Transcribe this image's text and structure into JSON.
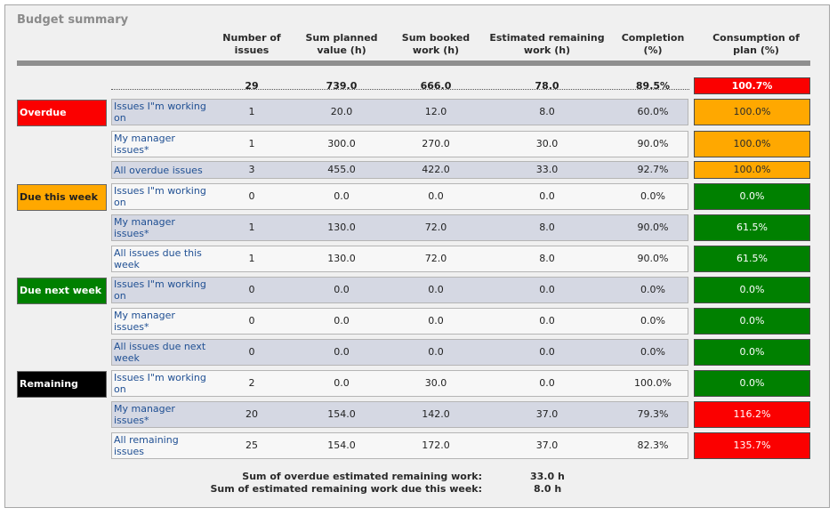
{
  "title": "Budget summary",
  "columns": [
    {
      "l1": "Number of",
      "l2": "issues"
    },
    {
      "l1": "Sum planned",
      "l2": "value (h)"
    },
    {
      "l1": "Sum booked",
      "l2": "work (h)"
    },
    {
      "l1": "Estimated remaining",
      "l2": "work (h)"
    },
    {
      "l1": "Completion",
      "l2": "(%)"
    },
    {
      "l1": "Consumption of",
      "l2": "plan (%)"
    }
  ],
  "totals": {
    "issues": "29",
    "planned": "739.0",
    "booked": "666.0",
    "remaining": "78.0",
    "completion": "89.5%",
    "consumption": "100.7%"
  },
  "groups": [
    {
      "label": "Overdue",
      "color": "#fb0000",
      "text_color": "#ffffff"
    },
    {
      "label": "Due this week",
      "color": "#ffa800",
      "text_color": "#1f1f1f"
    },
    {
      "label": "Due next week",
      "color": "#008000",
      "text_color": "#ffffff"
    },
    {
      "label": "Remaining",
      "color": "#000000",
      "text_color": "#ffffff"
    }
  ],
  "rows": [
    {
      "label": "Issues I\"m working on",
      "issues": "1",
      "planned": "20.0",
      "booked": "12.0",
      "remaining": "8.0",
      "completion": "60.0%",
      "consumption": "100.0%",
      "status": "orange"
    },
    {
      "label": "My manager issues*",
      "issues": "1",
      "planned": "300.0",
      "booked": "270.0",
      "remaining": "30.0",
      "completion": "90.0%",
      "consumption": "100.0%",
      "status": "orange"
    },
    {
      "label": "All overdue issues",
      "issues": "3",
      "planned": "455.0",
      "booked": "422.0",
      "remaining": "33.0",
      "completion": "92.7%",
      "consumption": "100.0%",
      "status": "orange"
    },
    {
      "label": "Issues I\"m working on",
      "issues": "0",
      "planned": "0.0",
      "booked": "0.0",
      "remaining": "0.0",
      "completion": "0.0%",
      "consumption": "0.0%",
      "status": "green"
    },
    {
      "label": "My manager issues*",
      "issues": "1",
      "planned": "130.0",
      "booked": "72.0",
      "remaining": "8.0",
      "completion": "90.0%",
      "consumption": "61.5%",
      "status": "green"
    },
    {
      "label": "All issues due this week",
      "issues": "1",
      "planned": "130.0",
      "booked": "72.0",
      "remaining": "8.0",
      "completion": "90.0%",
      "consumption": "61.5%",
      "status": "green"
    },
    {
      "label": "Issues I\"m working on",
      "issues": "0",
      "planned": "0.0",
      "booked": "0.0",
      "remaining": "0.0",
      "completion": "0.0%",
      "consumption": "0.0%",
      "status": "green"
    },
    {
      "label": "My manager issues*",
      "issues": "0",
      "planned": "0.0",
      "booked": "0.0",
      "remaining": "0.0",
      "completion": "0.0%",
      "consumption": "0.0%",
      "status": "green"
    },
    {
      "label": "All issues due next week",
      "issues": "0",
      "planned": "0.0",
      "booked": "0.0",
      "remaining": "0.0",
      "completion": "0.0%",
      "consumption": "0.0%",
      "status": "green"
    },
    {
      "label": "Issues I\"m working on",
      "issues": "2",
      "planned": "0.0",
      "booked": "30.0",
      "remaining": "0.0",
      "completion": "100.0%",
      "consumption": "0.0%",
      "status": "green"
    },
    {
      "label": "My manager issues*",
      "issues": "20",
      "planned": "154.0",
      "booked": "142.0",
      "remaining": "37.0",
      "completion": "79.3%",
      "consumption": "116.2%",
      "status": "red"
    },
    {
      "label": "All remaining issues",
      "issues": "25",
      "planned": "154.0",
      "booked": "172.0",
      "remaining": "37.0",
      "completion": "82.3%",
      "consumption": "135.7%",
      "status": "red"
    }
  ],
  "footer": [
    {
      "label": "Sum of overdue estimated remaining work:",
      "value": "33.0 h"
    },
    {
      "label": "Sum of estimated remaining work due this week:",
      "value": "8.0 h"
    }
  ]
}
